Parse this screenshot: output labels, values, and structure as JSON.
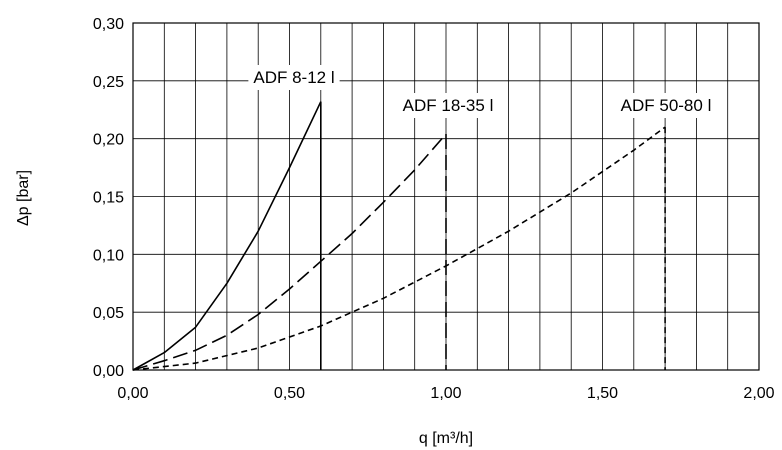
{
  "chart_data": {
    "type": "line",
    "title": "",
    "xlabel": "q [m³/h]",
    "ylabel": "Δp [bar]",
    "xlim": [
      0,
      2.0
    ],
    "ylim": [
      0,
      0.3
    ],
    "x_ticks": [
      0.0,
      0.5,
      1.0,
      1.5,
      2.0
    ],
    "x_tick_labels": [
      "0,00",
      "0,50",
      "1,00",
      "1,50",
      "2,00"
    ],
    "y_ticks": [
      0.0,
      0.05,
      0.1,
      0.15,
      0.2,
      0.25,
      0.3
    ],
    "y_tick_labels": [
      "0,00",
      "0,05",
      "0,10",
      "0,15",
      "0,20",
      "0,25",
      "0,30"
    ],
    "x_minor_grid_step": 0.1,
    "y_grid_step": 0.05,
    "grid": true,
    "legend": "none",
    "series": [
      {
        "name": "ADF 8-12 l",
        "style": "solid",
        "x": [
          0.0,
          0.1,
          0.2,
          0.3,
          0.4,
          0.5,
          0.6
        ],
        "y": [
          0.0,
          0.015,
          0.037,
          0.075,
          0.12,
          0.175,
          0.232
        ],
        "end_drop": true
      },
      {
        "name": "ADF 18-35 l",
        "style": "long-dash",
        "x": [
          0.0,
          0.1,
          0.2,
          0.3,
          0.4,
          0.5,
          0.6,
          0.7,
          0.8,
          0.9,
          1.0
        ],
        "y": [
          0.0,
          0.008,
          0.017,
          0.03,
          0.048,
          0.07,
          0.094,
          0.118,
          0.145,
          0.173,
          0.204
        ],
        "end_drop": true
      },
      {
        "name": "ADF 50-80 l",
        "style": "short-dash",
        "x": [
          0.0,
          0.2,
          0.4,
          0.6,
          0.8,
          1.0,
          1.2,
          1.4,
          1.6,
          1.7
        ],
        "y": [
          0.0,
          0.006,
          0.019,
          0.038,
          0.062,
          0.09,
          0.12,
          0.153,
          0.19,
          0.21
        ],
        "end_drop": true
      }
    ]
  }
}
